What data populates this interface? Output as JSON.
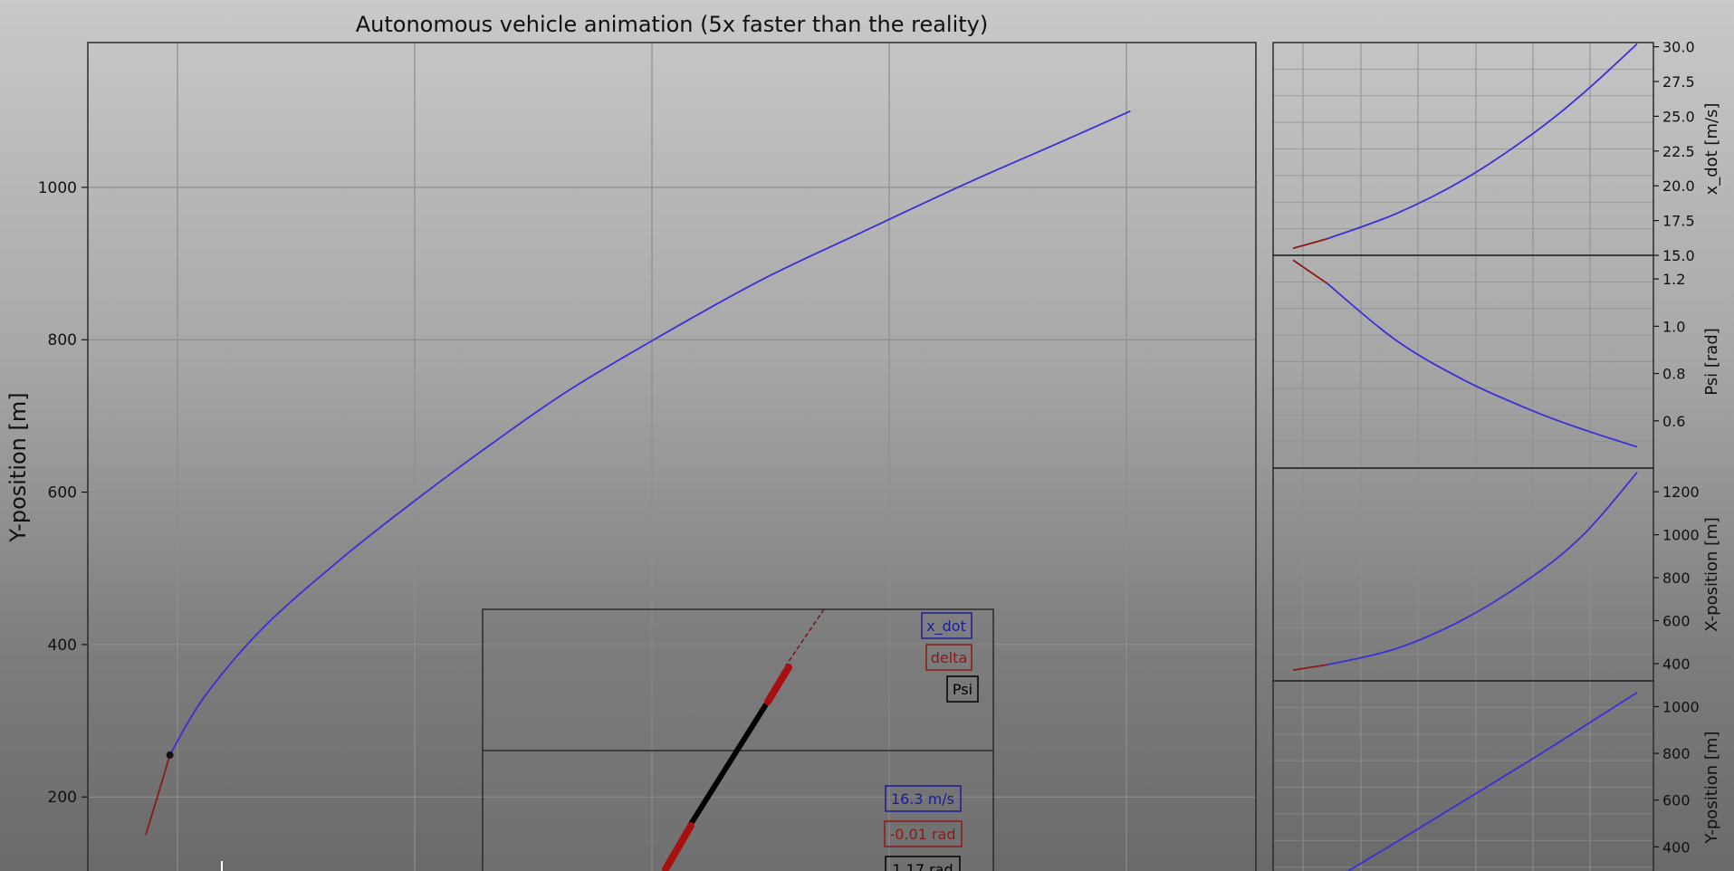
{
  "chart_data": [
    {
      "type": "line",
      "title": "Autonomous vehicle animation (5x faster than the reality)",
      "xlabel": "",
      "ylabel": "Y-position [m]",
      "ylim": [
        85,
        1190
      ],
      "yticks": [
        200,
        400,
        600,
        800,
        1000
      ],
      "grid": true,
      "series": [
        {
          "name": "",
          "color": "#8b1a1a",
          "x": [
            -20,
            -8,
            5
          ],
          "y": [
            150,
            200,
            255
          ]
        },
        {
          "name": "",
          "color": "#3b2fd6",
          "x": [
            5,
            40,
            100,
            180,
            260,
            340,
            420,
            520,
            620,
            720,
            830,
            920,
            1000
          ],
          "y": [
            255,
            330,
            420,
            510,
            590,
            665,
            735,
            810,
            880,
            940,
            1005,
            1055,
            1100
          ]
        }
      ],
      "marker": {
        "x": 5,
        "y": 255
      }
    },
    {
      "type": "line",
      "title": "",
      "ylabel": "x_dot [m/s]",
      "ylim": [
        15.0,
        30.3
      ],
      "yticks": [
        15.0,
        17.5,
        20.0,
        22.5,
        25.0,
        27.5,
        30.0
      ],
      "series": [
        {
          "name": "",
          "color": "#8b1a1a",
          "x": [
            0,
            0.1
          ],
          "y": [
            15.5,
            16.2
          ]
        },
        {
          "name": "",
          "color": "#3b2fd6",
          "x": [
            0.1,
            0.3,
            0.5,
            0.7,
            0.85,
            1.0
          ],
          "y": [
            16.2,
            18.0,
            20.5,
            23.8,
            26.8,
            30.2
          ]
        }
      ]
    },
    {
      "type": "line",
      "title": "",
      "ylabel": "Psi [rad]",
      "ylim": [
        0.4,
        1.3
      ],
      "yticks": [
        0.6,
        0.8,
        1.0,
        1.2
      ],
      "series": [
        {
          "name": "",
          "color": "#8b1a1a",
          "x": [
            0,
            0.1
          ],
          "y": [
            1.28,
            1.18
          ]
        },
        {
          "name": "",
          "color": "#3b2fd6",
          "x": [
            0.1,
            0.3,
            0.5,
            0.7,
            0.85,
            1.0
          ],
          "y": [
            1.18,
            0.94,
            0.77,
            0.64,
            0.56,
            0.49
          ]
        }
      ]
    },
    {
      "type": "line",
      "title": "",
      "ylabel": "X-position [m]",
      "ylim": [
        320,
        1310
      ],
      "yticks": [
        400,
        600,
        800,
        1000,
        1200
      ],
      "series": [
        {
          "name": "",
          "color": "#8b1a1a",
          "x": [
            0,
            0.1
          ],
          "y": [
            370,
            395
          ]
        },
        {
          "name": "",
          "color": "#3b2fd6",
          "x": [
            0.1,
            0.3,
            0.5,
            0.7,
            0.85,
            1.0
          ],
          "y": [
            395,
            470,
            610,
            810,
            1010,
            1290
          ]
        }
      ]
    },
    {
      "type": "line",
      "title": "",
      "ylabel": "Y-position [m]",
      "ylim": [
        200,
        1110
      ],
      "yticks": [
        400,
        600,
        800,
        1000
      ],
      "series": [
        {
          "name": "",
          "color": "#3b2fd6",
          "x": [
            0.05,
            0.3,
            0.5,
            0.7,
            0.85,
            1.0
          ],
          "y": [
            200,
            420,
            600,
            780,
            920,
            1060
          ]
        }
      ]
    }
  ],
  "zoom": {
    "labels": {
      "x_dot": "x_dot",
      "delta": "delta",
      "psi": "Psi"
    },
    "values": {
      "x_dot": "16.3 m/s",
      "delta": "-0.01 rad",
      "psi": "1.17 rad"
    }
  },
  "colors": {
    "blue": "#3b2fd6",
    "red": "#8b1a1a",
    "black": "#000000",
    "axes_border": "#2b2b2b",
    "grid": "#8e8e8e"
  }
}
